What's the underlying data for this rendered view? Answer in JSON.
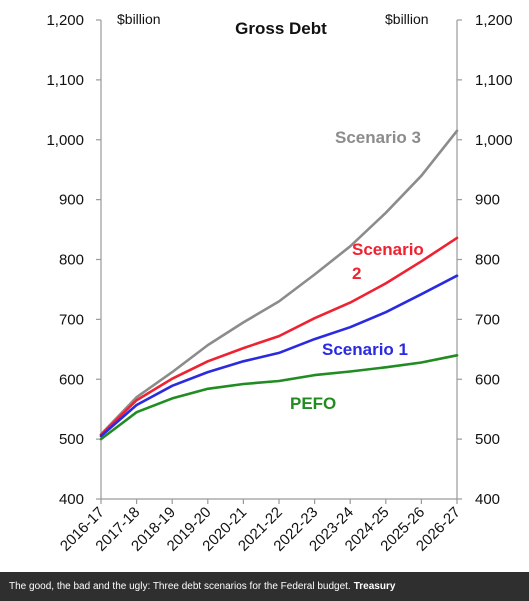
{
  "chart_data": {
    "type": "line",
    "title": "Gross Debt",
    "left_unit_label": "$billion",
    "right_unit_label": "$billion",
    "categories": [
      "2016-17",
      "2017-18",
      "2018-19",
      "2019-20",
      "2020-21",
      "2021-22",
      "2022-23",
      "2023-24",
      "2024-25",
      "2025-26",
      "2026-27"
    ],
    "ylim": [
      400,
      1200
    ],
    "yticks": [
      400,
      500,
      600,
      700,
      800,
      900,
      1000,
      1100,
      1200
    ],
    "ytick_labels": [
      "400",
      "500",
      "600",
      "700",
      "800",
      "900",
      "1,000",
      "1,100",
      "1,200"
    ],
    "grid": false,
    "series": [
      {
        "name": "Scenario 3",
        "color": "#8c8c8c",
        "values": [
          508,
          570,
          612,
          657,
          695,
          730,
          775,
          822,
          878,
          940,
          1015
        ]
      },
      {
        "name": "Scenario 2",
        "color": "#ee2231",
        "values": [
          507,
          565,
          601,
          630,
          652,
          672,
          702,
          728,
          760,
          797,
          836
        ]
      },
      {
        "name": "Scenario 1",
        "color": "#2a2ae0",
        "values": [
          505,
          557,
          589,
          612,
          630,
          644,
          667,
          687,
          712,
          742,
          773
        ]
      },
      {
        "name": "PEFO",
        "color": "#218c21",
        "values": [
          500,
          545,
          568,
          584,
          592,
          597,
          607,
          613,
          620,
          628,
          640
        ]
      }
    ],
    "series_labels": [
      {
        "text": "Scenario 3",
        "color": "#8c8c8c"
      },
      {
        "text": "Scenario",
        "color": "#ee2231"
      },
      {
        "text": "2",
        "color": "#ee2231"
      },
      {
        "text": "Scenario 1",
        "color": "#2a2ae0"
      },
      {
        "text": "PEFO",
        "color": "#218c21"
      }
    ]
  },
  "caption": {
    "text": "The good, the bad and the ugly: Three debt scenarios for the Federal budget.",
    "source": "Treasury"
  }
}
